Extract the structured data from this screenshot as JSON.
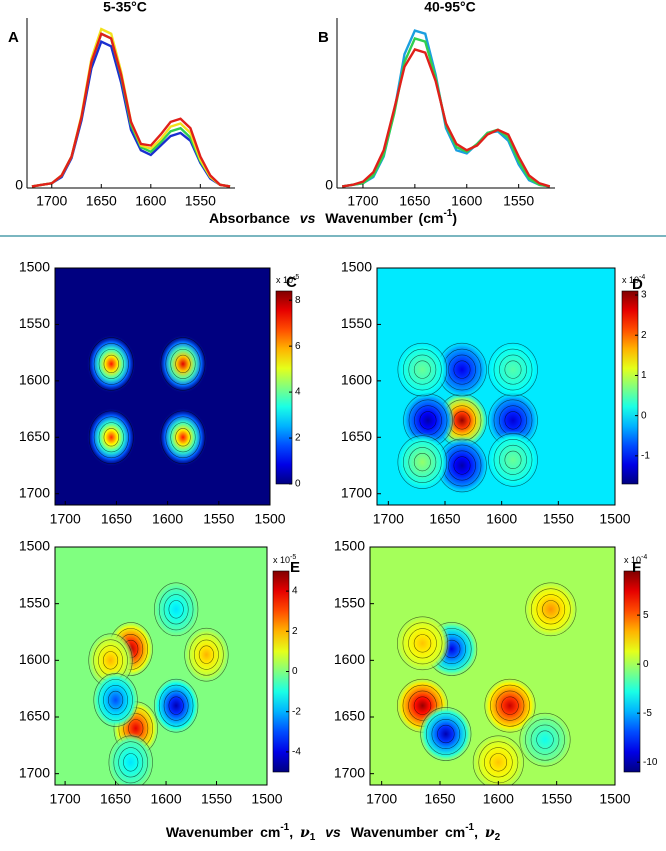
{
  "figure_xlabel_top": [
    "Absorbance",
    "vs",
    "Wavenumber",
    "(cm",
    "-1",
    ")"
  ],
  "figure_xlabel_bottom": [
    "Wavenumber",
    "cm",
    "-1",
    ",",
    "ν",
    "1",
    "vs",
    "Wavenumber",
    "cm",
    "-1",
    ",",
    "ν",
    "2"
  ],
  "chart_data": [
    {
      "type": "line",
      "label": "A",
      "title": "5-35°C",
      "x": [
        1720,
        1710,
        1700,
        1690,
        1680,
        1670,
        1660,
        1650,
        1640,
        1630,
        1620,
        1610,
        1600,
        1590,
        1580,
        1570,
        1560,
        1550,
        1540,
        1530,
        1520
      ],
      "xlim": [
        1725,
        1515
      ],
      "xticks": [
        1700,
        1650,
        1600,
        1550
      ],
      "ylim": [
        0,
        1.08
      ],
      "yticks": [
        0
      ],
      "series": [
        {
          "color": "#1a2fd0",
          "values": [
            0.01,
            0.02,
            0.03,
            0.07,
            0.19,
            0.43,
            0.76,
            0.93,
            0.9,
            0.67,
            0.37,
            0.24,
            0.21,
            0.27,
            0.33,
            0.35,
            0.3,
            0.16,
            0.06,
            0.02,
            0.01
          ]
        },
        {
          "color": "#2fcf4f",
          "values": [
            0.01,
            0.02,
            0.03,
            0.08,
            0.2,
            0.45,
            0.8,
            0.98,
            0.95,
            0.71,
            0.4,
            0.26,
            0.23,
            0.29,
            0.36,
            0.38,
            0.32,
            0.17,
            0.07,
            0.02,
            0.01
          ]
        },
        {
          "color": "#f2e21c",
          "values": [
            0.01,
            0.02,
            0.03,
            0.08,
            0.2,
            0.46,
            0.82,
            1.01,
            0.98,
            0.74,
            0.42,
            0.27,
            0.25,
            0.31,
            0.39,
            0.41,
            0.35,
            0.18,
            0.07,
            0.02,
            0.01
          ]
        },
        {
          "color": "#e0201a",
          "values": [
            0.01,
            0.02,
            0.03,
            0.08,
            0.2,
            0.45,
            0.8,
            0.98,
            0.95,
            0.72,
            0.42,
            0.28,
            0.27,
            0.34,
            0.42,
            0.44,
            0.38,
            0.2,
            0.08,
            0.02,
            0.01
          ]
        }
      ]
    },
    {
      "type": "line",
      "label": "B",
      "title": "40-95°C",
      "x": [
        1720,
        1710,
        1700,
        1690,
        1680,
        1670,
        1660,
        1650,
        1640,
        1630,
        1620,
        1610,
        1600,
        1590,
        1580,
        1570,
        1560,
        1550,
        1540,
        1530,
        1520
      ],
      "xlim": [
        1725,
        1515
      ],
      "xticks": [
        1700,
        1650,
        1600,
        1550
      ],
      "ylim": [
        0,
        1.08
      ],
      "yticks": [
        0
      ],
      "series": [
        {
          "color": "#1a9fe0",
          "values": [
            0.01,
            0.02,
            0.03,
            0.07,
            0.2,
            0.48,
            0.85,
            1.0,
            0.98,
            0.72,
            0.38,
            0.24,
            0.22,
            0.28,
            0.35,
            0.36,
            0.3,
            0.15,
            0.05,
            0.02,
            0.01
          ]
        },
        {
          "color": "#2fcf4f",
          "values": [
            0.01,
            0.02,
            0.03,
            0.08,
            0.21,
            0.47,
            0.8,
            0.95,
            0.93,
            0.7,
            0.4,
            0.26,
            0.23,
            0.28,
            0.35,
            0.37,
            0.32,
            0.17,
            0.06,
            0.02,
            0.01
          ]
        },
        {
          "color": "#e0201a",
          "values": [
            0.01,
            0.02,
            0.04,
            0.1,
            0.24,
            0.5,
            0.77,
            0.88,
            0.86,
            0.68,
            0.41,
            0.28,
            0.24,
            0.27,
            0.34,
            0.37,
            0.34,
            0.2,
            0.08,
            0.03,
            0.01
          ]
        }
      ]
    },
    {
      "type": "contour",
      "label": "C",
      "xlim": [
        1710,
        1500
      ],
      "ylim": [
        1710,
        1500
      ],
      "xticks": [
        1700,
        1650,
        1600,
        1550,
        1500
      ],
      "yticks": [
        1500,
        1550,
        1600,
        1650,
        1700
      ],
      "background": 0,
      "clim": [
        0,
        8.4
      ],
      "cticks": [
        0,
        2,
        4,
        6,
        8
      ],
      "cscale_label": [
        "x 10",
        "-5"
      ],
      "peaks": [
        {
          "x": 1655,
          "y": 1585,
          "value": 7.2
        },
        {
          "x": 1585,
          "y": 1585,
          "value": 7.6
        },
        {
          "x": 1655,
          "y": 1650,
          "value": 7.0
        },
        {
          "x": 1585,
          "y": 1650,
          "value": 7.2
        }
      ]
    },
    {
      "type": "contour",
      "label": "D",
      "xlim": [
        1710,
        1500
      ],
      "ylim": [
        1710,
        1500
      ],
      "xticks": [
        1700,
        1650,
        1600,
        1550,
        1500
      ],
      "yticks": [
        1500,
        1550,
        1600,
        1650,
        1700
      ],
      "background": 0,
      "clim": [
        -1.7,
        3.1
      ],
      "cticks": [
        -1,
        0,
        1,
        2,
        3
      ],
      "cscale_label": [
        "x 10",
        "-4"
      ],
      "peaks": [
        {
          "x": 1635,
          "y": 1635,
          "value": 3
        },
        {
          "x": 1665,
          "y": 1635,
          "value": -1.5
        },
        {
          "x": 1590,
          "y": 1635,
          "value": -1.3
        },
        {
          "x": 1635,
          "y": 1590,
          "value": -1.2
        },
        {
          "x": 1635,
          "y": 1675,
          "value": -1.5
        },
        {
          "x": 1670,
          "y": 1590,
          "value": 0.6
        },
        {
          "x": 1670,
          "y": 1672,
          "value": 0.8
        },
        {
          "x": 1590,
          "y": 1590,
          "value": 0.5
        },
        {
          "x": 1590,
          "y": 1670,
          "value": 0.6
        }
      ]
    },
    {
      "type": "contour",
      "label": "E",
      "xlim": [
        1710,
        1500
      ],
      "ylim": [
        1710,
        1500
      ],
      "xticks": [
        1700,
        1650,
        1600,
        1550,
        1500
      ],
      "yticks": [
        1500,
        1550,
        1600,
        1650,
        1700
      ],
      "background": 0,
      "clim": [
        -5,
        5
      ],
      "cticks": [
        -4,
        -2,
        0,
        2,
        4
      ],
      "cscale_label": [
        "x 10",
        "-5"
      ],
      "peaks": [
        {
          "x": 1635,
          "y": 1590,
          "value": 4.5
        },
        {
          "x": 1630,
          "y": 1660,
          "value": 4
        },
        {
          "x": 1655,
          "y": 1600,
          "value": 2
        },
        {
          "x": 1560,
          "y": 1595,
          "value": 2
        },
        {
          "x": 1590,
          "y": 1640,
          "value": -4.5
        },
        {
          "x": 1650,
          "y": 1635,
          "value": -3
        },
        {
          "x": 1590,
          "y": 1555,
          "value": -1.5
        },
        {
          "x": 1635,
          "y": 1690,
          "value": -1.5
        }
      ]
    },
    {
      "type": "contour",
      "label": "F",
      "xlim": [
        1710,
        1500
      ],
      "ylim": [
        1710,
        1500
      ],
      "xticks": [
        1700,
        1650,
        1600,
        1550,
        1500
      ],
      "yticks": [
        1500,
        1550,
        1600,
        1650,
        1700
      ],
      "background": 0,
      "clim": [
        -11,
        9.5
      ],
      "cticks": [
        -10,
        -5,
        0,
        5
      ],
      "cscale_label": [
        "x 10",
        "-4"
      ],
      "peaks": [
        {
          "x": 1665,
          "y": 1640,
          "value": 9
        },
        {
          "x": 1590,
          "y": 1640,
          "value": 8
        },
        {
          "x": 1640,
          "y": 1590,
          "value": -9
        },
        {
          "x": 1645,
          "y": 1665,
          "value": -10
        },
        {
          "x": 1555,
          "y": 1555,
          "value": 4
        },
        {
          "x": 1665,
          "y": 1585,
          "value": 3
        },
        {
          "x": 1560,
          "y": 1670,
          "value": -3
        },
        {
          "x": 1600,
          "y": 1690,
          "value": 3
        }
      ]
    }
  ]
}
